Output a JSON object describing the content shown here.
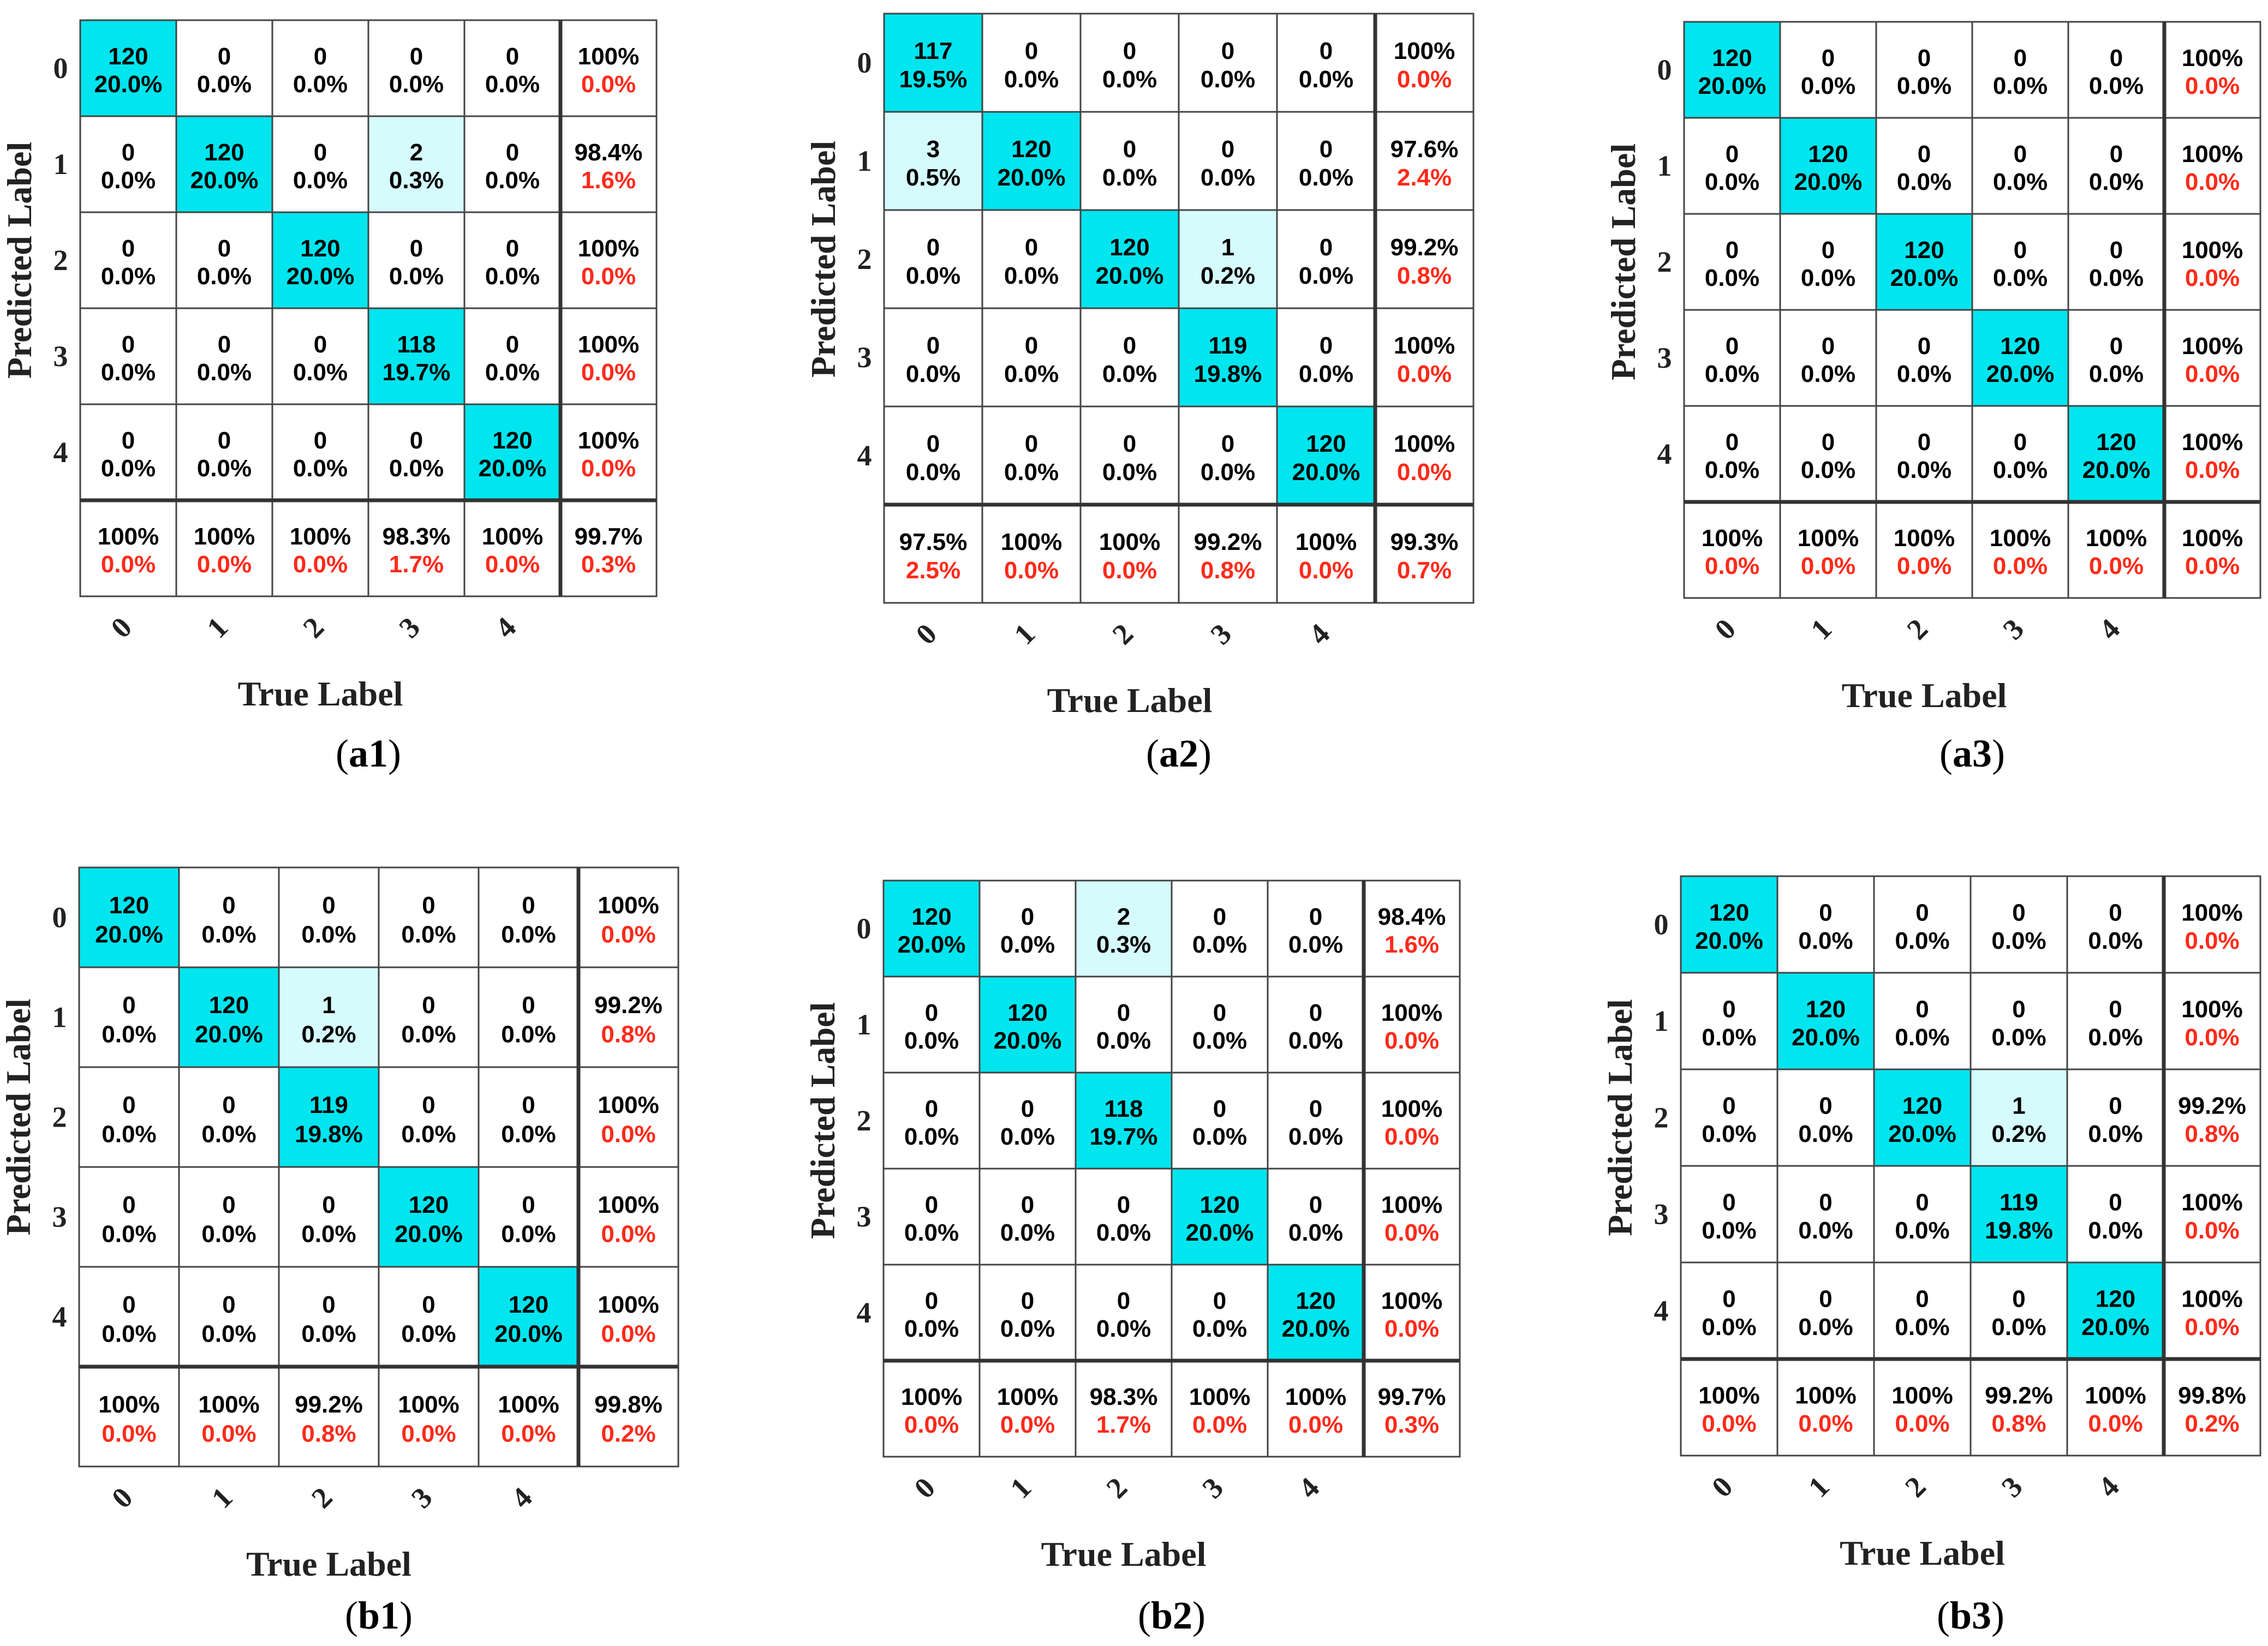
{
  "colors": {
    "diagonal": "#00E5EE",
    "off_diagonal": "#D6FBFC",
    "plain": "#FFFFFF",
    "count_text": "#000000",
    "error_text": "#FF2A1A",
    "grid": "#444444"
  },
  "chart_data": [
    {
      "type": "heatmap",
      "id": "a1",
      "caption_bold": "a1",
      "xlabel": "True Label",
      "ylabel": "Predicted Label",
      "x_ticks": [
        "0",
        "1",
        "2",
        "3",
        "4"
      ],
      "y_ticks": [
        "0",
        "1",
        "2",
        "3",
        "4"
      ],
      "cells": [
        [
          [
            "120",
            "20.0%"
          ],
          [
            "0",
            "0.0%"
          ],
          [
            "0",
            "0.0%"
          ],
          [
            "0",
            "0.0%"
          ],
          [
            "0",
            "0.0%"
          ]
        ],
        [
          [
            "0",
            "0.0%"
          ],
          [
            "120",
            "20.0%"
          ],
          [
            "0",
            "0.0%"
          ],
          [
            "2",
            "0.3%"
          ],
          [
            "0",
            "0.0%"
          ]
        ],
        [
          [
            "0",
            "0.0%"
          ],
          [
            "0",
            "0.0%"
          ],
          [
            "120",
            "20.0%"
          ],
          [
            "0",
            "0.0%"
          ],
          [
            "0",
            "0.0%"
          ]
        ],
        [
          [
            "0",
            "0.0%"
          ],
          [
            "0",
            "0.0%"
          ],
          [
            "0",
            "0.0%"
          ],
          [
            "118",
            "19.7%"
          ],
          [
            "0",
            "0.0%"
          ]
        ],
        [
          [
            "0",
            "0.0%"
          ],
          [
            "0",
            "0.0%"
          ],
          [
            "0",
            "0.0%"
          ],
          [
            "0",
            "0.0%"
          ],
          [
            "120",
            "20.0%"
          ]
        ]
      ],
      "row_summary": [
        [
          "100%",
          "0.0%"
        ],
        [
          "98.4%",
          "1.6%"
        ],
        [
          "100%",
          "0.0%"
        ],
        [
          "100%",
          "0.0%"
        ],
        [
          "100%",
          "0.0%"
        ]
      ],
      "col_summary": [
        [
          "100%",
          "0.0%"
        ],
        [
          "100%",
          "0.0%"
        ],
        [
          "100%",
          "0.0%"
        ],
        [
          "98.3%",
          "1.7%"
        ],
        [
          "100%",
          "0.0%"
        ]
      ],
      "overall": [
        "99.7%",
        "0.3%"
      ]
    },
    {
      "type": "heatmap",
      "id": "a2",
      "caption_bold": "a2",
      "xlabel": "True Label",
      "ylabel": "Predicted Label",
      "x_ticks": [
        "0",
        "1",
        "2",
        "3",
        "4"
      ],
      "y_ticks": [
        "0",
        "1",
        "2",
        "3",
        "4"
      ],
      "cells": [
        [
          [
            "117",
            "19.5%"
          ],
          [
            "0",
            "0.0%"
          ],
          [
            "0",
            "0.0%"
          ],
          [
            "0",
            "0.0%"
          ],
          [
            "0",
            "0.0%"
          ]
        ],
        [
          [
            "3",
            "0.5%"
          ],
          [
            "120",
            "20.0%"
          ],
          [
            "0",
            "0.0%"
          ],
          [
            "0",
            "0.0%"
          ],
          [
            "0",
            "0.0%"
          ]
        ],
        [
          [
            "0",
            "0.0%"
          ],
          [
            "0",
            "0.0%"
          ],
          [
            "120",
            "20.0%"
          ],
          [
            "1",
            "0.2%"
          ],
          [
            "0",
            "0.0%"
          ]
        ],
        [
          [
            "0",
            "0.0%"
          ],
          [
            "0",
            "0.0%"
          ],
          [
            "0",
            "0.0%"
          ],
          [
            "119",
            "19.8%"
          ],
          [
            "0",
            "0.0%"
          ]
        ],
        [
          [
            "0",
            "0.0%"
          ],
          [
            "0",
            "0.0%"
          ],
          [
            "0",
            "0.0%"
          ],
          [
            "0",
            "0.0%"
          ],
          [
            "120",
            "20.0%"
          ]
        ]
      ],
      "row_summary": [
        [
          "100%",
          "0.0%"
        ],
        [
          "97.6%",
          "2.4%"
        ],
        [
          "99.2%",
          "0.8%"
        ],
        [
          "100%",
          "0.0%"
        ],
        [
          "100%",
          "0.0%"
        ]
      ],
      "col_summary": [
        [
          "97.5%",
          "2.5%"
        ],
        [
          "100%",
          "0.0%"
        ],
        [
          "100%",
          "0.0%"
        ],
        [
          "99.2%",
          "0.8%"
        ],
        [
          "100%",
          "0.0%"
        ]
      ],
      "overall": [
        "99.3%",
        "0.7%"
      ]
    },
    {
      "type": "heatmap",
      "id": "a3",
      "caption_bold": "a3",
      "xlabel": "True Label",
      "ylabel": "Predicted Label",
      "x_ticks": [
        "0",
        "1",
        "2",
        "3",
        "4"
      ],
      "y_ticks": [
        "0",
        "1",
        "2",
        "3",
        "4"
      ],
      "cells": [
        [
          [
            "120",
            "20.0%"
          ],
          [
            "0",
            "0.0%"
          ],
          [
            "0",
            "0.0%"
          ],
          [
            "0",
            "0.0%"
          ],
          [
            "0",
            "0.0%"
          ]
        ],
        [
          [
            "0",
            "0.0%"
          ],
          [
            "120",
            "20.0%"
          ],
          [
            "0",
            "0.0%"
          ],
          [
            "0",
            "0.0%"
          ],
          [
            "0",
            "0.0%"
          ]
        ],
        [
          [
            "0",
            "0.0%"
          ],
          [
            "0",
            "0.0%"
          ],
          [
            "120",
            "20.0%"
          ],
          [
            "0",
            "0.0%"
          ],
          [
            "0",
            "0.0%"
          ]
        ],
        [
          [
            "0",
            "0.0%"
          ],
          [
            "0",
            "0.0%"
          ],
          [
            "0",
            "0.0%"
          ],
          [
            "120",
            "20.0%"
          ],
          [
            "0",
            "0.0%"
          ]
        ],
        [
          [
            "0",
            "0.0%"
          ],
          [
            "0",
            "0.0%"
          ],
          [
            "0",
            "0.0%"
          ],
          [
            "0",
            "0.0%"
          ],
          [
            "120",
            "20.0%"
          ]
        ]
      ],
      "row_summary": [
        [
          "100%",
          "0.0%"
        ],
        [
          "100%",
          "0.0%"
        ],
        [
          "100%",
          "0.0%"
        ],
        [
          "100%",
          "0.0%"
        ],
        [
          "100%",
          "0.0%"
        ]
      ],
      "col_summary": [
        [
          "100%",
          "0.0%"
        ],
        [
          "100%",
          "0.0%"
        ],
        [
          "100%",
          "0.0%"
        ],
        [
          "100%",
          "0.0%"
        ],
        [
          "100%",
          "0.0%"
        ]
      ],
      "overall": [
        "100%",
        "0.0%"
      ]
    },
    {
      "type": "heatmap",
      "id": "b1",
      "caption_bold": "b1",
      "xlabel": "True Label",
      "ylabel": "Predicted Label",
      "x_ticks": [
        "0",
        "1",
        "2",
        "3",
        "4"
      ],
      "y_ticks": [
        "0",
        "1",
        "2",
        "3",
        "4"
      ],
      "cells": [
        [
          [
            "120",
            "20.0%"
          ],
          [
            "0",
            "0.0%"
          ],
          [
            "0",
            "0.0%"
          ],
          [
            "0",
            "0.0%"
          ],
          [
            "0",
            "0.0%"
          ]
        ],
        [
          [
            "0",
            "0.0%"
          ],
          [
            "120",
            "20.0%"
          ],
          [
            "1",
            "0.2%"
          ],
          [
            "0",
            "0.0%"
          ],
          [
            "0",
            "0.0%"
          ]
        ],
        [
          [
            "0",
            "0.0%"
          ],
          [
            "0",
            "0.0%"
          ],
          [
            "119",
            "19.8%"
          ],
          [
            "0",
            "0.0%"
          ],
          [
            "0",
            "0.0%"
          ]
        ],
        [
          [
            "0",
            "0.0%"
          ],
          [
            "0",
            "0.0%"
          ],
          [
            "0",
            "0.0%"
          ],
          [
            "120",
            "20.0%"
          ],
          [
            "0",
            "0.0%"
          ]
        ],
        [
          [
            "0",
            "0.0%"
          ],
          [
            "0",
            "0.0%"
          ],
          [
            "0",
            "0.0%"
          ],
          [
            "0",
            "0.0%"
          ],
          [
            "120",
            "20.0%"
          ]
        ]
      ],
      "row_summary": [
        [
          "100%",
          "0.0%"
        ],
        [
          "99.2%",
          "0.8%"
        ],
        [
          "100%",
          "0.0%"
        ],
        [
          "100%",
          "0.0%"
        ],
        [
          "100%",
          "0.0%"
        ]
      ],
      "col_summary": [
        [
          "100%",
          "0.0%"
        ],
        [
          "100%",
          "0.0%"
        ],
        [
          "99.2%",
          "0.8%"
        ],
        [
          "100%",
          "0.0%"
        ],
        [
          "100%",
          "0.0%"
        ]
      ],
      "overall": [
        "99.8%",
        "0.2%"
      ]
    },
    {
      "type": "heatmap",
      "id": "b2",
      "caption_bold": "b2",
      "xlabel": "True Label",
      "ylabel": "Predicted Label",
      "x_ticks": [
        "0",
        "1",
        "2",
        "3",
        "4"
      ],
      "y_ticks": [
        "0",
        "1",
        "2",
        "3",
        "4"
      ],
      "cells": [
        [
          [
            "120",
            "20.0%"
          ],
          [
            "0",
            "0.0%"
          ],
          [
            "2",
            "0.3%"
          ],
          [
            "0",
            "0.0%"
          ],
          [
            "0",
            "0.0%"
          ]
        ],
        [
          [
            "0",
            "0.0%"
          ],
          [
            "120",
            "20.0%"
          ],
          [
            "0",
            "0.0%"
          ],
          [
            "0",
            "0.0%"
          ],
          [
            "0",
            "0.0%"
          ]
        ],
        [
          [
            "0",
            "0.0%"
          ],
          [
            "0",
            "0.0%"
          ],
          [
            "118",
            "19.7%"
          ],
          [
            "0",
            "0.0%"
          ],
          [
            "0",
            "0.0%"
          ]
        ],
        [
          [
            "0",
            "0.0%"
          ],
          [
            "0",
            "0.0%"
          ],
          [
            "0",
            "0.0%"
          ],
          [
            "120",
            "20.0%"
          ],
          [
            "0",
            "0.0%"
          ]
        ],
        [
          [
            "0",
            "0.0%"
          ],
          [
            "0",
            "0.0%"
          ],
          [
            "0",
            "0.0%"
          ],
          [
            "0",
            "0.0%"
          ],
          [
            "120",
            "20.0%"
          ]
        ]
      ],
      "row_summary": [
        [
          "98.4%",
          "1.6%"
        ],
        [
          "100%",
          "0.0%"
        ],
        [
          "100%",
          "0.0%"
        ],
        [
          "100%",
          "0.0%"
        ],
        [
          "100%",
          "0.0%"
        ]
      ],
      "col_summary": [
        [
          "100%",
          "0.0%"
        ],
        [
          "100%",
          "0.0%"
        ],
        [
          "98.3%",
          "1.7%"
        ],
        [
          "100%",
          "0.0%"
        ],
        [
          "100%",
          "0.0%"
        ]
      ],
      "overall": [
        "99.7%",
        "0.3%"
      ]
    },
    {
      "type": "heatmap",
      "id": "b3",
      "caption_bold": "b3",
      "xlabel": "True Label",
      "ylabel": "Predicted Label",
      "x_ticks": [
        "0",
        "1",
        "2",
        "3",
        "4"
      ],
      "y_ticks": [
        "0",
        "1",
        "2",
        "3",
        "4"
      ],
      "cells": [
        [
          [
            "120",
            "20.0%"
          ],
          [
            "0",
            "0.0%"
          ],
          [
            "0",
            "0.0%"
          ],
          [
            "0",
            "0.0%"
          ],
          [
            "0",
            "0.0%"
          ]
        ],
        [
          [
            "0",
            "0.0%"
          ],
          [
            "120",
            "20.0%"
          ],
          [
            "0",
            "0.0%"
          ],
          [
            "0",
            "0.0%"
          ],
          [
            "0",
            "0.0%"
          ]
        ],
        [
          [
            "0",
            "0.0%"
          ],
          [
            "0",
            "0.0%"
          ],
          [
            "120",
            "20.0%"
          ],
          [
            "1",
            "0.2%"
          ],
          [
            "0",
            "0.0%"
          ]
        ],
        [
          [
            "0",
            "0.0%"
          ],
          [
            "0",
            "0.0%"
          ],
          [
            "0",
            "0.0%"
          ],
          [
            "119",
            "19.8%"
          ],
          [
            "0",
            "0.0%"
          ]
        ],
        [
          [
            "0",
            "0.0%"
          ],
          [
            "0",
            "0.0%"
          ],
          [
            "0",
            "0.0%"
          ],
          [
            "0",
            "0.0%"
          ],
          [
            "120",
            "20.0%"
          ]
        ]
      ],
      "row_summary": [
        [
          "100%",
          "0.0%"
        ],
        [
          "100%",
          "0.0%"
        ],
        [
          "99.2%",
          "0.8%"
        ],
        [
          "100%",
          "0.0%"
        ],
        [
          "100%",
          "0.0%"
        ]
      ],
      "col_summary": [
        [
          "100%",
          "0.0%"
        ],
        [
          "100%",
          "0.0%"
        ],
        [
          "100%",
          "0.0%"
        ],
        [
          "99.2%",
          "0.8%"
        ],
        [
          "100%",
          "0.0%"
        ]
      ],
      "overall": [
        "99.8%",
        "0.2%"
      ]
    }
  ]
}
